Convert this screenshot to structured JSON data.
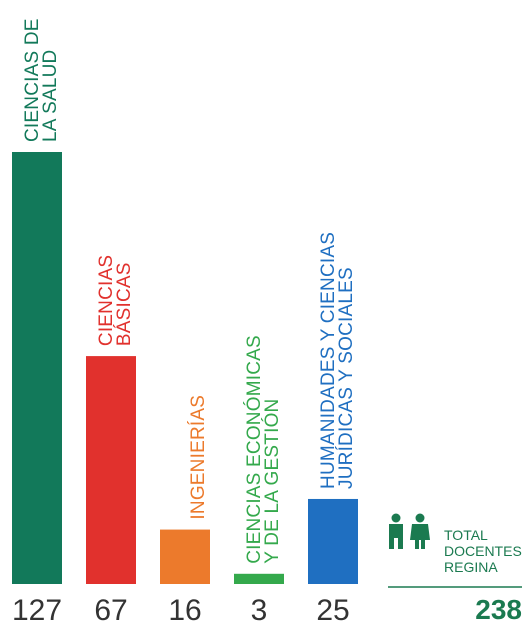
{
  "chart_data": {
    "type": "bar",
    "categories": [
      [
        "CIENCIAS DE",
        "LA SALUD"
      ],
      [
        "CIENCIAS",
        "BÁSICAS"
      ],
      [
        "INGENIERÍAS"
      ],
      [
        "CIENCIAS ECONÓMICAS",
        "Y DE LA GESTIÓN"
      ],
      [
        "HUMANIDADES Y CIENCIAS",
        "JURÍDICAS Y SOCIALES"
      ]
    ],
    "values": [
      127,
      67,
      16,
      3,
      25
    ],
    "colors": [
      "#12795a",
      "#e1312d",
      "#ec7a2c",
      "#34a94c",
      "#1f6fc1"
    ],
    "ylim": [
      0,
      127
    ],
    "grid": false,
    "legend": "none"
  },
  "total": {
    "lines": [
      "TOTAL",
      "DOCENTES",
      "REGINA"
    ],
    "value": "238",
    "icon": "man-woman-icon",
    "color": "#1b7a50"
  }
}
